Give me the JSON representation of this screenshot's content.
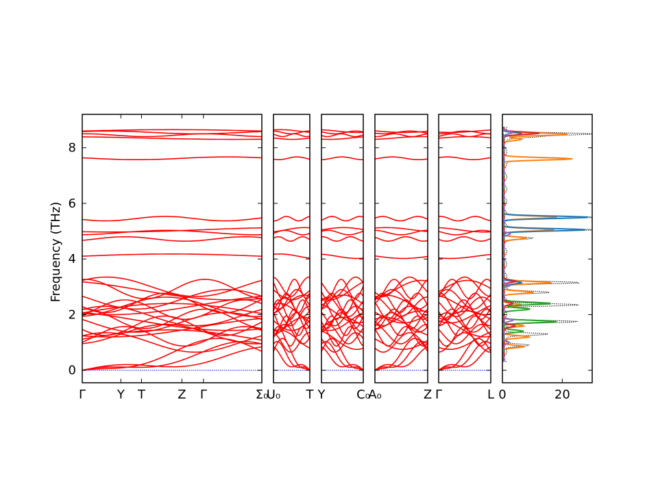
{
  "chart_data": {
    "type": "line",
    "ylabel": "Frequency (THz)",
    "ylim": [
      -0.45,
      9.2
    ],
    "yticks": [
      0,
      2,
      4,
      6,
      8
    ],
    "line_color": "#ff0000",
    "zero_line_color": "#0000ff",
    "panels": [
      {
        "name": "segment-1",
        "ticks": [
          "Γ",
          "Y",
          "T",
          "Z",
          "Γ",
          "Σ₀"
        ],
        "tick_positions": [
          0,
          0.215,
          0.33,
          0.555,
          0.675,
          1
        ]
      },
      {
        "name": "segment-2",
        "ticks": [
          "U₀",
          "T"
        ],
        "tick_positions": [
          0,
          1
        ]
      },
      {
        "name": "segment-3",
        "ticks": [
          "Y",
          "C₀"
        ],
        "tick_positions": [
          0,
          1
        ]
      },
      {
        "name": "segment-4",
        "ticks": [
          "A₀",
          "Z"
        ],
        "tick_positions": [
          0,
          1
        ]
      },
      {
        "name": "segment-5",
        "ticks": [
          "Γ",
          "L"
        ],
        "tick_positions": [
          0,
          1
        ]
      }
    ],
    "optical_bands": [
      8.6,
      8.55,
      8.45,
      8.35,
      7.62,
      5.45,
      5.05,
      4.95,
      4.72,
      4.1,
      3.0,
      2.92,
      2.88,
      2.55,
      2.42,
      2.35,
      2.28,
      2.18,
      2.05,
      1.95,
      1.85,
      1.78,
      1.72,
      1.6,
      1.55,
      1.3,
      1.22,
      1.1,
      1.0
    ],
    "dos": {
      "xlim": [
        0,
        30
      ],
      "xticks": [
        0,
        20
      ],
      "series": [
        {
          "color": "#000000",
          "style": "dotted",
          "peaks": [
            [
              8.5,
              29
            ],
            [
              8.4,
              10
            ],
            [
              7.6,
              23
            ],
            [
              5.5,
              30
            ],
            [
              5.05,
              30
            ],
            [
              4.75,
              9
            ],
            [
              3.15,
              26
            ],
            [
              2.8,
              15
            ],
            [
              2.35,
              25
            ],
            [
              1.75,
              25
            ],
            [
              1.3,
              15
            ],
            [
              0.9,
              9
            ]
          ]
        },
        {
          "color": "#ff7f0e",
          "style": "solid",
          "peaks": [
            [
              8.48,
              22
            ],
            [
              8.3,
              6
            ],
            [
              7.6,
              23
            ],
            [
              5.5,
              18
            ],
            [
              5.05,
              17
            ],
            [
              4.75,
              8
            ],
            [
              3.15,
              16
            ],
            [
              2.8,
              10
            ],
            [
              2.35,
              6
            ],
            [
              1.6,
              7
            ],
            [
              1.2,
              9
            ],
            [
              0.85,
              7
            ]
          ]
        },
        {
          "color": "#1f77b4",
          "style": "solid",
          "peaks": [
            [
              8.5,
              6
            ],
            [
              5.5,
              29
            ],
            [
              5.05,
              28
            ],
            [
              3.15,
              6
            ]
          ]
        },
        {
          "color": "#2ca02c",
          "style": "solid",
          "peaks": [
            [
              2.4,
              16
            ],
            [
              2.2,
              9
            ],
            [
              1.75,
              18
            ],
            [
              1.4,
              7
            ]
          ]
        },
        {
          "color": "#d62728",
          "style": "solid",
          "peaks": [
            [
              8.52,
              12
            ],
            [
              3.2,
              4
            ],
            [
              2.4,
              3
            ],
            [
              1.6,
              4
            ]
          ]
        },
        {
          "color": "#9467bd",
          "style": "solid",
          "peaks": [
            [
              8.55,
              3
            ],
            [
              4.9,
              2
            ],
            [
              3.05,
              2
            ],
            [
              1.8,
              3
            ],
            [
              1.0,
              2
            ]
          ]
        }
      ]
    }
  }
}
